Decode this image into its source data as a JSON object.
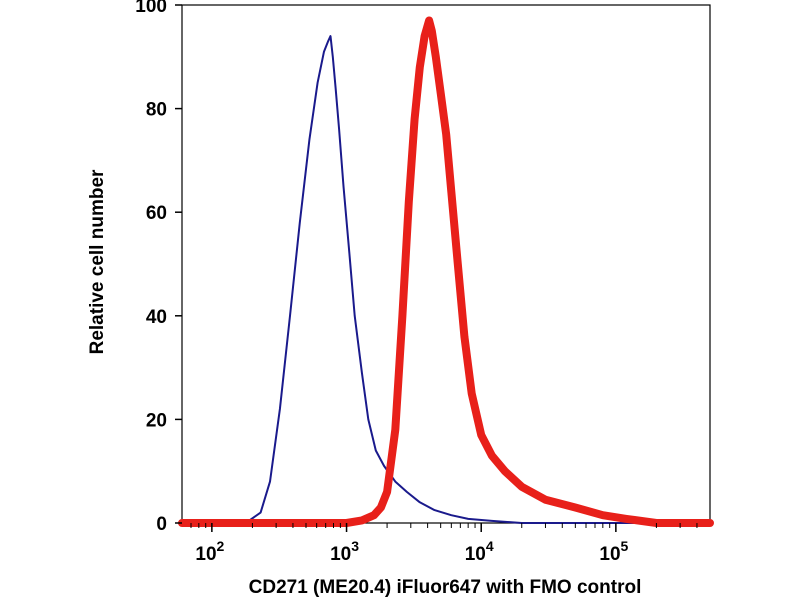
{
  "chart_data": {
    "type": "line",
    "title": "",
    "xlabel": "CD271 (ME20.4) iFluor647 with FMO control",
    "ylabel": "Relative cell number",
    "xscale": "log",
    "xlim": [
      60,
      500000
    ],
    "ylim": [
      0,
      100
    ],
    "grid": false,
    "x_ticks": [
      {
        "value": 100,
        "base": "10",
        "exp": "2"
      },
      {
        "value": 1000,
        "base": "10",
        "exp": "3"
      },
      {
        "value": 10000,
        "base": "10",
        "exp": "4"
      },
      {
        "value": 100000,
        "base": "10",
        "exp": "5"
      }
    ],
    "y_ticks": [
      0,
      20,
      40,
      60,
      80,
      100
    ],
    "series": [
      {
        "color": "#1a1a8c",
        "x": [
          60,
          140,
          190,
          230,
          270,
          320,
          380,
          450,
          530,
          610,
          680,
          730,
          760,
          790,
          830,
          880,
          950,
          1050,
          1150,
          1300,
          1450,
          1650,
          1900,
          2300,
          2800,
          3500,
          4500,
          6000,
          8000,
          12000,
          20000,
          500000
        ],
        "y": [
          0,
          0,
          0.5,
          2,
          8,
          22,
          40,
          58,
          74,
          85,
          91,
          93,
          94,
          90,
          84,
          76,
          65,
          52,
          40,
          29,
          20,
          14,
          11,
          8,
          6,
          4,
          2.5,
          1.5,
          0.8,
          0.4,
          0,
          0
        ]
      },
      {
        "color": "#e8201a",
        "x": [
          60,
          1000,
          1300,
          1600,
          1800,
          2000,
          2300,
          2600,
          2900,
          3200,
          3500,
          3800,
          4100,
          4300,
          4600,
          5000,
          5500,
          6000,
          6700,
          7500,
          8500,
          10000,
          12000,
          15000,
          20000,
          30000,
          50000,
          80000,
          120000,
          200000,
          500000
        ],
        "y": [
          0,
          0,
          0.5,
          1.5,
          3,
          6,
          18,
          40,
          62,
          78,
          88,
          94,
          97,
          95,
          90,
          83,
          75,
          64,
          50,
          36,
          25,
          17,
          13,
          10,
          7,
          4.5,
          3,
          1.5,
          0.8,
          0,
          0
        ]
      }
    ]
  }
}
